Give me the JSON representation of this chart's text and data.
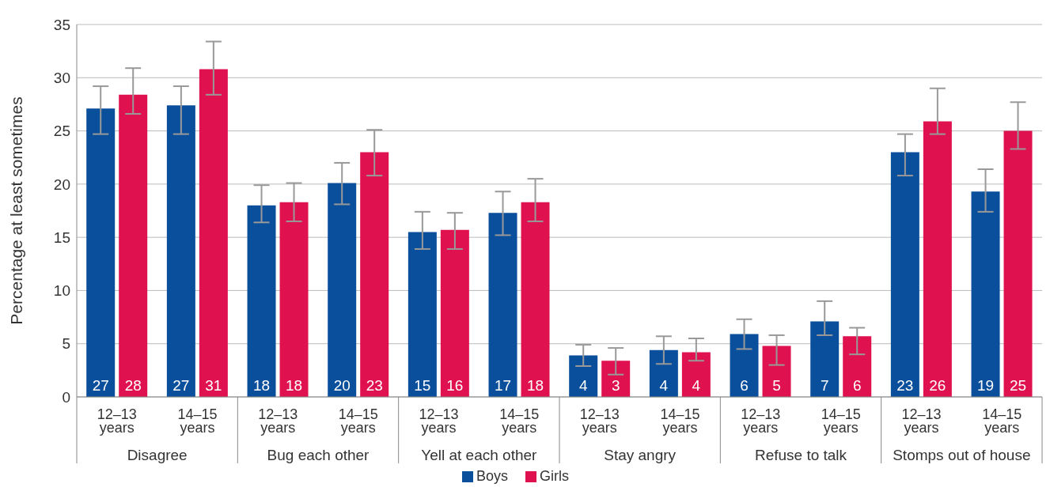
{
  "chart_data": {
    "type": "bar",
    "ylabel": "Percentage at least sometimes",
    "categories": [
      "12–13 years",
      "14–15 years",
      "12–13 years",
      "14–15 years",
      "12–13 years",
      "14–15 years",
      "12–13 years",
      "14–15 years",
      "12–13 years",
      "14–15 years",
      "12–13 years",
      "14–15 years"
    ],
    "annotations": [
      "Disagree",
      "Bug each other",
      "Yell at each other",
      "Stay angry",
      "Refuse to talk",
      "Stomps out of house"
    ],
    "series": [
      {
        "name": "Boys",
        "color": "#0a4f9c",
        "values": [
          27.1,
          27.4,
          18.0,
          20.1,
          15.5,
          17.3,
          3.9,
          4.4,
          5.9,
          7.1,
          23.0,
          19.3
        ],
        "value_labels": [
          "27",
          "27",
          "18",
          "20",
          "15",
          "17",
          "4",
          "4",
          "6",
          "7",
          "23",
          "19"
        ],
        "errors": [
          [
            24.7,
            29.2
          ],
          [
            24.7,
            29.2
          ],
          [
            16.4,
            19.9
          ],
          [
            18.1,
            22.0
          ],
          [
            13.9,
            17.4
          ],
          [
            15.2,
            19.3
          ],
          [
            2.9,
            4.9
          ],
          [
            3.1,
            5.7
          ],
          [
            4.5,
            7.3
          ],
          [
            5.8,
            9.0
          ],
          [
            20.8,
            24.7
          ],
          [
            17.4,
            21.4
          ]
        ]
      },
      {
        "name": "Girls",
        "color": "#e0114f",
        "values": [
          28.4,
          30.8,
          18.3,
          23.0,
          15.7,
          18.3,
          3.4,
          4.2,
          4.8,
          5.7,
          25.9,
          25.0
        ],
        "value_labels": [
          "28",
          "31",
          "18",
          "23",
          "16",
          "18",
          "3",
          "4",
          "5",
          "6",
          "26",
          "25"
        ],
        "errors": [
          [
            26.6,
            30.9
          ],
          [
            28.4,
            33.4
          ],
          [
            16.5,
            20.1
          ],
          [
            20.8,
            25.1
          ],
          [
            13.9,
            17.3
          ],
          [
            16.5,
            20.5
          ],
          [
            2.1,
            4.6
          ],
          [
            3.4,
            5.5
          ],
          [
            3.0,
            5.8
          ],
          [
            4.0,
            6.5
          ],
          [
            24.7,
            29.0
          ],
          [
            23.3,
            27.7
          ]
        ]
      }
    ],
    "ylim": [
      0,
      35
    ],
    "yticks": [
      0,
      5,
      10,
      15,
      20,
      25,
      30,
      35
    ],
    "grid": "y",
    "legend": "bottom"
  }
}
